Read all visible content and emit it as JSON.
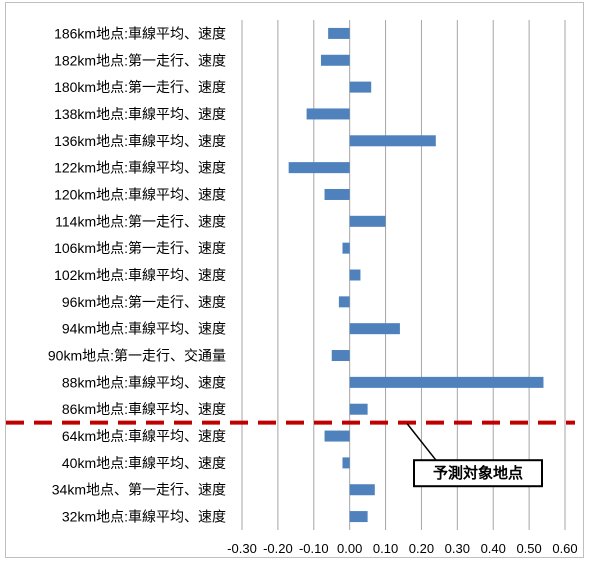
{
  "chart_data": {
    "type": "bar",
    "orientation": "horizontal",
    "categories": [
      "186km地点:車線平均、速度",
      "182km地点:第一走行、速度",
      "180km地点:第一走行、速度",
      "138km地点:車線平均、速度",
      "136km地点:車線平均、速度",
      "122km地点:車線平均、速度",
      "120km地点:車線平均、速度",
      "114km地点:第一走行、速度",
      "106km地点:第一走行、速度",
      "102km地点:車線平均、速度",
      "96km地点:第一走行、速度",
      "94km地点:車線平均、速度",
      "90km地点:第一走行、交通量",
      "88km地点:車線平均、速度",
      "86km地点:車線平均、速度",
      "64km地点:車線平均、速度",
      "40km地点:車線平均、速度",
      "34km地点、第一走行、速度",
      "32km地点:車線平均、速度"
    ],
    "values": [
      -0.06,
      -0.08,
      0.06,
      -0.12,
      0.24,
      -0.17,
      -0.07,
      0.1,
      -0.02,
      0.03,
      -0.03,
      0.14,
      -0.05,
      0.54,
      0.05,
      -0.07,
      -0.02,
      0.07,
      0.05
    ],
    "xlim": [
      -0.3,
      0.6
    ],
    "x_ticks": [
      "-0.30",
      "-0.20",
      "-0.10",
      "0.00",
      "0.10",
      "0.20",
      "0.30",
      "0.40",
      "0.50",
      "0.60"
    ],
    "grid": true,
    "bar_color": "#4f81bd",
    "grid_color": "#a6a6a6",
    "annotation": {
      "text": "予測対象地点",
      "line_style": "dashed",
      "line_color": "#c00000",
      "position": "between 86km地点 and 64km地点"
    }
  }
}
